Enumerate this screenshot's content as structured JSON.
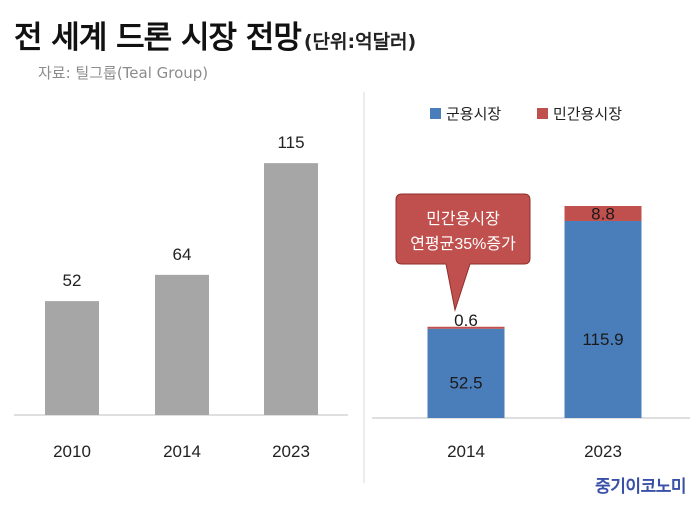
{
  "header": {
    "title": "전 세계 드론 시장 전망",
    "unit": "(단위:억달러)",
    "source": "자료: 틸그룹(Teal Group)"
  },
  "callout": {
    "line1": "민간용시장",
    "line2": "연평균35%증가",
    "color": "#c0504d"
  },
  "brand": "중기이코노미",
  "colors": {
    "total_bar": "#a6a6a6",
    "military": "#4a7ebb",
    "civil": "#c0504d"
  },
  "chart_data": [
    {
      "type": "bar",
      "categories": [
        "2010",
        "2014",
        "2023"
      ],
      "values": [
        52,
        64,
        115
      ],
      "data_labels": [
        "52",
        "64",
        "115"
      ]
    },
    {
      "type": "bar",
      "stacked": true,
      "categories": [
        "2014",
        "2023"
      ],
      "legend": "top",
      "series": [
        {
          "name": "군용시장",
          "values": [
            52.5,
            115.9
          ],
          "labels": [
            "52.5",
            "115.9"
          ]
        },
        {
          "name": "민간용시장",
          "values": [
            0.6,
            8.8
          ],
          "labels": [
            "0.6",
            "8.8"
          ]
        }
      ]
    }
  ]
}
